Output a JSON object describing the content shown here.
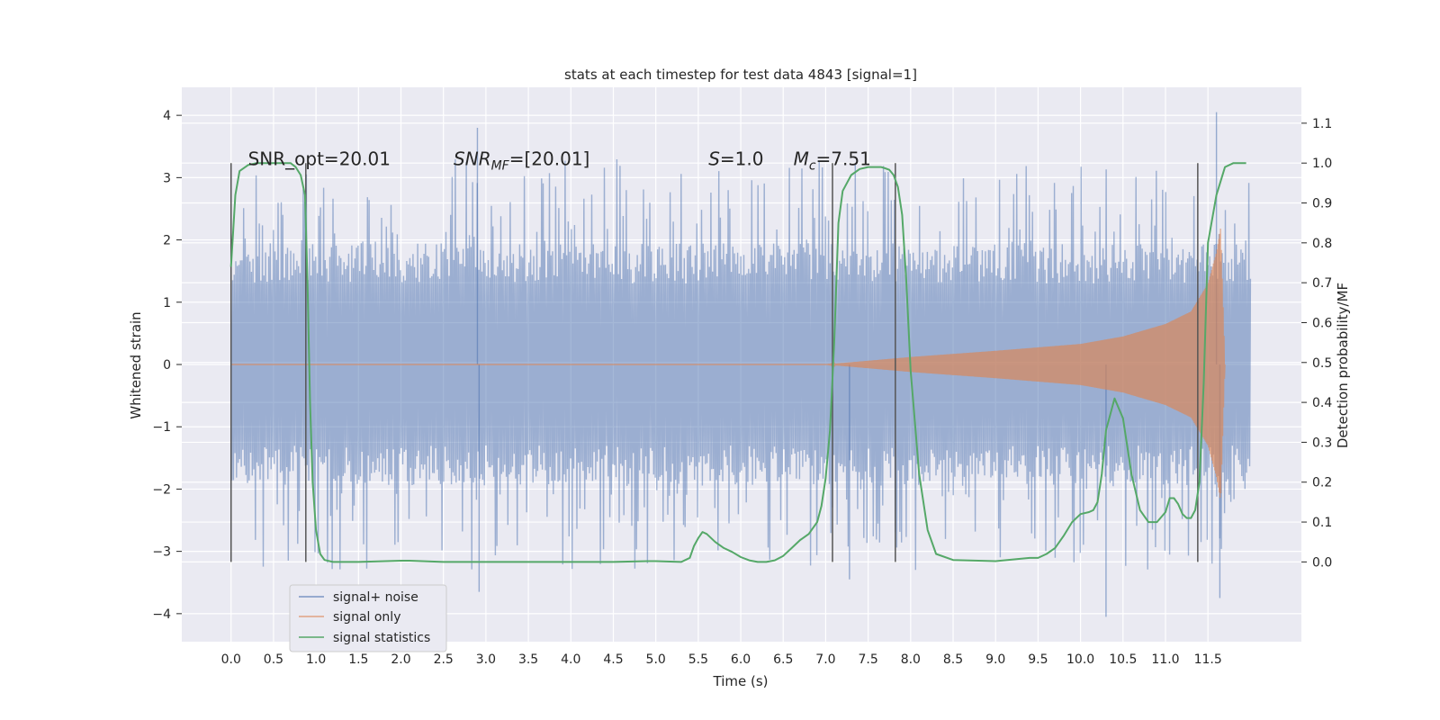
{
  "chart_data": {
    "type": "line",
    "title": "stats at each timestep for test data 4843 [signal=1]",
    "xlabel": "Time (s)",
    "ylabel": "Whitened strain",
    "ylabel_right": "Detection probability/MF",
    "xlim": [
      -0.58,
      12.6
    ],
    "ylim": [
      -4.45,
      4.45
    ],
    "ylim_right": [
      -0.2,
      1.19
    ],
    "x_ticks": [
      "0.0",
      "0.5",
      "1.0",
      "1.5",
      "2.0",
      "2.5",
      "3.0",
      "3.5",
      "4.0",
      "4.5",
      "5.0",
      "5.5",
      "6.0",
      "6.5",
      "7.0",
      "7.5",
      "8.0",
      "8.5",
      "9.0",
      "9.5",
      "10.0",
      "10.5",
      "11.0",
      "11.5"
    ],
    "y_ticks": [
      "4",
      "3",
      "2",
      "1",
      "0",
      "−1",
      "−2",
      "−3",
      "−4"
    ],
    "y_ticks_right": [
      "1.1",
      "1.0",
      "0.9",
      "0.8",
      "0.7",
      "0.6",
      "0.5",
      "0.4",
      "0.3",
      "0.2",
      "0.1",
      "0.0"
    ],
    "grid": true,
    "legend_position": "lower-left",
    "annotations": [
      {
        "x": 0.2,
        "y": 3.2,
        "text": "SNR_opt=20.01"
      },
      {
        "x": 2.62,
        "y": 3.2,
        "text": "SNR_MF=[20.01]"
      },
      {
        "x": 5.62,
        "y": 3.2,
        "text": "S=1.0"
      },
      {
        "x": 6.62,
        "y": 3.2,
        "text": "M_c=7.51"
      }
    ],
    "vertical_markers_x": [
      0.0,
      0.88,
      7.08,
      7.82,
      11.38
    ],
    "series": [
      {
        "name": "signal+ noise",
        "color": "#4c72b0",
        "axis": "left",
        "x_range": [
          0.0,
          12.0
        ],
        "envelope_core": 1.3,
        "typical_peak": 2.5,
        "extreme_values": [
          {
            "x": 2.9,
            "y": 3.8
          },
          {
            "x": 2.92,
            "y": -3.65
          },
          {
            "x": 7.28,
            "y": -3.45
          },
          {
            "x": 10.3,
            "y": -4.05
          },
          {
            "x": 11.6,
            "y": 4.05
          },
          {
            "x": 11.64,
            "y": -3.75
          }
        ]
      },
      {
        "name": "signal only",
        "color": "#dd8452",
        "axis": "left",
        "description_points": [
          {
            "x": 7.0,
            "y": 0.0
          },
          {
            "x": 8.0,
            "y": 0.12
          },
          {
            "x": 9.0,
            "y": 0.22
          },
          {
            "x": 10.0,
            "y": 0.33
          },
          {
            "x": 10.5,
            "y": 0.45
          },
          {
            "x": 11.0,
            "y": 0.65
          },
          {
            "x": 11.3,
            "y": 0.85
          },
          {
            "x": 11.5,
            "y": 1.3
          },
          {
            "x": 11.6,
            "y": 1.8
          },
          {
            "x": 11.65,
            "y": 2.2
          },
          {
            "x": 11.7,
            "y": 0.0
          }
        ]
      },
      {
        "name": "signal statistics",
        "color": "#55a868",
        "axis": "right",
        "x": [
          0.0,
          0.05,
          0.1,
          0.2,
          0.3,
          0.4,
          0.5,
          0.6,
          0.7,
          0.76,
          0.82,
          0.87,
          0.9,
          0.93,
          0.96,
          1.0,
          1.05,
          1.1,
          1.2,
          1.5,
          2.0,
          2.1,
          2.5,
          3.0,
          3.5,
          4.0,
          4.5,
          4.9,
          5.0,
          5.3,
          5.4,
          5.45,
          5.5,
          5.55,
          5.6,
          5.7,
          5.8,
          5.9,
          6.0,
          6.1,
          6.2,
          6.3,
          6.4,
          6.5,
          6.6,
          6.7,
          6.8,
          6.85,
          6.9,
          6.95,
          7.0,
          7.05,
          7.1,
          7.15,
          7.2,
          7.3,
          7.4,
          7.5,
          7.6,
          7.65,
          7.7,
          7.75,
          7.8,
          7.85,
          7.9,
          7.95,
          8.0,
          8.1,
          8.2,
          8.3,
          8.5,
          9.0,
          9.4,
          9.5,
          9.6,
          9.7,
          9.8,
          9.9,
          10.0,
          10.1,
          10.15,
          10.2,
          10.25,
          10.3,
          10.4,
          10.5,
          10.6,
          10.7,
          10.8,
          10.9,
          11.0,
          11.05,
          11.1,
          11.15,
          11.2,
          11.25,
          11.3,
          11.35,
          11.4,
          11.45,
          11.5,
          11.6,
          11.7,
          11.8,
          11.9,
          11.95
        ],
        "values": [
          0.74,
          0.92,
          0.98,
          0.995,
          1.0,
          1.0,
          1.0,
          1.0,
          1.0,
          0.99,
          0.97,
          0.92,
          0.7,
          0.4,
          0.2,
          0.08,
          0.02,
          0.005,
          0.0,
          0.0,
          0.003,
          0.003,
          0.0,
          0.0,
          0.0,
          0.0,
          0.0,
          0.002,
          0.002,
          0.0,
          0.01,
          0.04,
          0.06,
          0.075,
          0.07,
          0.05,
          0.035,
          0.025,
          0.012,
          0.004,
          0.0,
          0.0,
          0.004,
          0.015,
          0.035,
          0.055,
          0.07,
          0.085,
          0.1,
          0.14,
          0.21,
          0.33,
          0.55,
          0.85,
          0.93,
          0.97,
          0.985,
          0.99,
          0.99,
          0.99,
          0.987,
          0.983,
          0.97,
          0.94,
          0.87,
          0.7,
          0.48,
          0.22,
          0.08,
          0.02,
          0.005,
          0.002,
          0.01,
          0.01,
          0.02,
          0.035,
          0.065,
          0.1,
          0.12,
          0.125,
          0.13,
          0.15,
          0.22,
          0.33,
          0.41,
          0.36,
          0.22,
          0.13,
          0.1,
          0.1,
          0.125,
          0.16,
          0.16,
          0.145,
          0.12,
          0.11,
          0.11,
          0.13,
          0.2,
          0.45,
          0.8,
          0.92,
          0.99,
          1.0,
          1.0,
          1.0
        ]
      }
    ]
  }
}
